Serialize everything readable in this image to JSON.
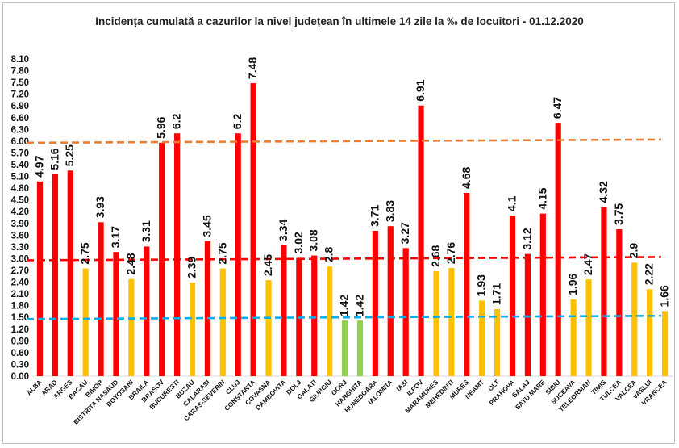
{
  "chart_data": {
    "type": "bar",
    "title": "Incidența cumulată a cazurilor la nivel județean în ultimele 14 zile la ‰ de locuitori - 01.12.2020",
    "ylim": [
      0,
      8.1
    ],
    "yticks": [
      "0.00",
      "0.30",
      "0.60",
      "0.90",
      "1.20",
      "1.50",
      "1.80",
      "2.10",
      "2.40",
      "2.70",
      "3.00",
      "3.30",
      "3.60",
      "3.90",
      "4.20",
      "4.50",
      "4.80",
      "5.10",
      "5.40",
      "5.70",
      "6.00",
      "6.30",
      "6.60",
      "6.90",
      "7.20",
      "7.50",
      "7.80",
      "8.10"
    ],
    "categories": [
      "ALBA",
      "ARAD",
      "ARGES",
      "BACAU",
      "BIHOR",
      "BISTRITA NASAUD",
      "BOTOSANI",
      "BRAILA",
      "BRASOV",
      "BUCURESTI",
      "BUZAU",
      "CALARASI",
      "CARAS-SEVERIN",
      "CLUJ",
      "CONSTANTA",
      "COVASNA",
      "DAMBOVITA",
      "DOLJ",
      "GALATI",
      "GIURGIU",
      "GORJ",
      "HARGHITA",
      "HUNEDOARA",
      "IALOMITA",
      "IASI",
      "ILFOV",
      "MARAMURES",
      "MEHEDINTI",
      "MURES",
      "NEAMT",
      "OLT",
      "PRAHOVA",
      "SALAJ",
      "SATU MARE",
      "SIBIU",
      "SUCEAVA",
      "TELEORMAN",
      "TIMIS",
      "TULCEA",
      "VALCEA",
      "VASLUI",
      "VRANCEA"
    ],
    "values": [
      4.97,
      5.16,
      5.25,
      2.75,
      3.93,
      3.17,
      2.48,
      3.31,
      5.96,
      6.2,
      2.39,
      3.45,
      2.75,
      6.2,
      7.48,
      2.45,
      3.34,
      3.02,
      3.08,
      2.8,
      1.42,
      1.42,
      3.71,
      3.83,
      3.27,
      6.91,
      2.68,
      2.76,
      4.68,
      1.93,
      1.71,
      4.1,
      3.12,
      4.15,
      6.47,
      1.96,
      2.47,
      4.32,
      3.75,
      2.9,
      2.22,
      1.66
    ],
    "labels": [
      "4.97",
      "5.16",
      "5.25",
      "2.75",
      "3.93",
      "3.17",
      "2.48",
      "3.31",
      "5.96",
      "6.2",
      "2.39",
      "3.45",
      "2.75",
      "6.2",
      "7.48",
      "2.45",
      "3.34",
      "3.02",
      "3.08",
      "2.8",
      "1.42",
      "1.42",
      "3.71",
      "3.83",
      "3.27",
      "6.91",
      "2.68",
      "2.76",
      "4.68",
      "1.93",
      "1.71",
      "4.1",
      "3.12",
      "4.15",
      "6.47",
      "1.96",
      "2.47",
      "4.32",
      "3.75",
      "2.9",
      "2.22",
      "1.66"
    ],
    "bar_colors": {
      "red": "#ff0000",
      "yellow": "#ffc000",
      "green": "#92d050"
    },
    "thresholds": [
      {
        "value": 6.0,
        "color": "#ed7d31"
      },
      {
        "value": 3.0,
        "color": "#ff0000"
      },
      {
        "value": 1.5,
        "color": "#00b0f0"
      }
    ],
    "grid": false,
    "legend": "none"
  }
}
